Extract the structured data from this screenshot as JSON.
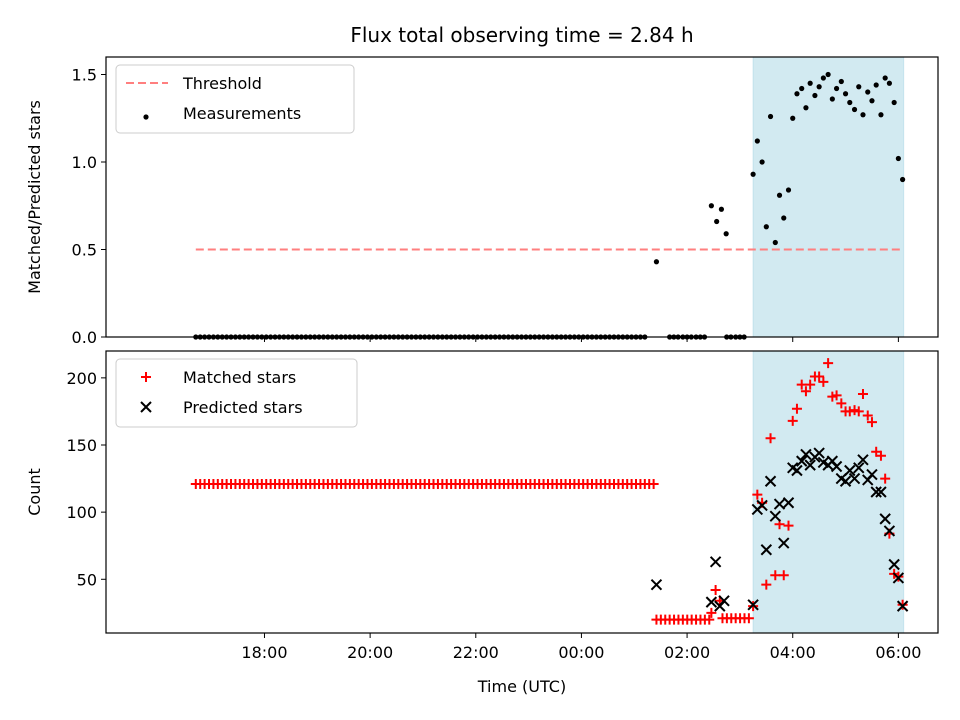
{
  "figure": {
    "title": "Flux total observing time = 2.84 h",
    "xlabel": "Time (UTC)"
  },
  "chart_data": [
    {
      "type": "scatter",
      "ylabel": "Matched/Predicted stars",
      "ylim": [
        0,
        1.6
      ],
      "yticks": [
        0.0,
        0.5,
        1.0,
        1.5
      ],
      "ytick_labels": [
        "0.0",
        "0.5",
        "1.0",
        "1.5"
      ],
      "xlim": [
        15.0,
        30.75
      ],
      "legend": {
        "placement": "top-left",
        "entries": [
          {
            "label": "Threshold",
            "style": "dashed-line",
            "color": "#ff7f7f"
          },
          {
            "label": "Measurements",
            "style": "dot",
            "color": "#000000"
          }
        ]
      },
      "threshold": {
        "name": "Threshold",
        "y": 0.5,
        "x_range": [
          16.7,
          30.1
        ],
        "color": "#ff7f7f"
      },
      "shaded_region": {
        "x_range": [
          27.25,
          30.1
        ],
        "color": "#add8e6"
      },
      "series": [
        {
          "name": "Measurements",
          "color": "#000000",
          "zero_run": {
            "x_start": 16.7,
            "x_end": 25.25,
            "step": 0.083333,
            "y": 0
          },
          "points": [
            [
              25.67,
              0.0
            ],
            [
              25.75,
              0.0
            ],
            [
              25.83,
              0.0
            ],
            [
              25.92,
              0.0
            ],
            [
              26.0,
              0.0
            ],
            [
              26.08,
              0.0
            ],
            [
              26.17,
              0.0
            ],
            [
              26.25,
              0.0
            ],
            [
              26.33,
              0.0
            ],
            [
              26.75,
              0.0
            ],
            [
              26.83,
              0.0
            ],
            [
              26.92,
              0.0
            ],
            [
              27.0,
              0.0
            ],
            [
              27.08,
              0.0
            ],
            [
              25.42,
              0.43
            ],
            [
              26.46,
              0.75
            ],
            [
              26.56,
              0.66
            ],
            [
              26.65,
              0.73
            ],
            [
              26.74,
              0.59
            ],
            [
              27.25,
              0.93
            ],
            [
              27.33,
              1.12
            ],
            [
              27.42,
              1.0
            ],
            [
              27.5,
              0.63
            ],
            [
              27.58,
              1.26
            ],
            [
              27.67,
              0.54
            ],
            [
              27.75,
              0.81
            ],
            [
              27.83,
              0.68
            ],
            [
              27.92,
              0.84
            ],
            [
              28.0,
              1.25
            ],
            [
              28.08,
              1.39
            ],
            [
              28.17,
              1.42
            ],
            [
              28.25,
              1.31
            ],
            [
              28.33,
              1.45
            ],
            [
              28.42,
              1.38
            ],
            [
              28.5,
              1.43
            ],
            [
              28.58,
              1.48
            ],
            [
              28.67,
              1.5
            ],
            [
              28.75,
              1.36
            ],
            [
              28.83,
              1.42
            ],
            [
              28.92,
              1.46
            ],
            [
              29.0,
              1.39
            ],
            [
              29.08,
              1.34
            ],
            [
              29.17,
              1.3
            ],
            [
              29.25,
              1.43
            ],
            [
              29.33,
              1.27
            ],
            [
              29.42,
              1.4
            ],
            [
              29.5,
              1.35
            ],
            [
              29.58,
              1.44
            ],
            [
              29.67,
              1.27
            ],
            [
              29.75,
              1.48
            ],
            [
              29.83,
              1.45
            ],
            [
              29.92,
              1.34
            ],
            [
              30.0,
              1.02
            ],
            [
              30.08,
              0.9
            ]
          ]
        }
      ]
    },
    {
      "type": "scatter",
      "ylabel": "Count",
      "ylim": [
        10,
        220
      ],
      "yticks": [
        50,
        100,
        150,
        200
      ],
      "ytick_labels": [
        "50",
        "100",
        "150",
        "200"
      ],
      "xlim": [
        15.0,
        30.75
      ],
      "xticks": [
        18,
        20,
        22,
        24,
        26,
        28,
        30
      ],
      "xtick_labels": [
        "18:00",
        "20:00",
        "22:00",
        "00:00",
        "02:00",
        "04:00",
        "06:00"
      ],
      "legend": {
        "placement": "top-left",
        "entries": [
          {
            "label": "Matched stars",
            "style": "plus",
            "color": "#ff0000"
          },
          {
            "label": "Predicted stars",
            "style": "x",
            "color": "#000000"
          }
        ]
      },
      "shaded_region": {
        "x_range": [
          27.25,
          30.1
        ],
        "color": "#add8e6"
      },
      "series": [
        {
          "name": "Matched stars",
          "color": "#ff0000",
          "marker": "plus",
          "constant_runs": [
            {
              "x_start": 16.7,
              "x_end": 25.4,
              "step": 0.083333,
              "y": 121
            },
            {
              "x_start": 25.42,
              "x_end": 26.42,
              "step": 0.083333,
              "y": 20
            },
            {
              "x_start": 26.67,
              "x_end": 27.17,
              "step": 0.083333,
              "y": 21
            }
          ],
          "points": [
            [
              26.46,
              25
            ],
            [
              26.54,
              42
            ],
            [
              26.62,
              34
            ],
            [
              27.25,
              30
            ],
            [
              27.33,
              113
            ],
            [
              27.42,
              107
            ],
            [
              27.5,
              46
            ],
            [
              27.58,
              155
            ],
            [
              27.67,
              53
            ],
            [
              27.75,
              91
            ],
            [
              27.83,
              53
            ],
            [
              27.92,
              90
            ],
            [
              28.0,
              168
            ],
            [
              28.08,
              177
            ],
            [
              28.17,
              195
            ],
            [
              28.25,
              190
            ],
            [
              28.33,
              195
            ],
            [
              28.42,
              201
            ],
            [
              28.5,
              201
            ],
            [
              28.58,
              197
            ],
            [
              28.67,
              211
            ],
            [
              28.75,
              186
            ],
            [
              28.83,
              187
            ],
            [
              28.92,
              181
            ],
            [
              29.0,
              175
            ],
            [
              29.08,
              175
            ],
            [
              29.17,
              176
            ],
            [
              29.25,
              175
            ],
            [
              29.33,
              188
            ],
            [
              29.42,
              172
            ],
            [
              29.5,
              167
            ],
            [
              29.58,
              145
            ],
            [
              29.67,
              142
            ],
            [
              29.75,
              125
            ],
            [
              29.83,
              84
            ],
            [
              29.92,
              54
            ],
            [
              30.0,
              52
            ],
            [
              30.08,
              31
            ]
          ]
        },
        {
          "name": "Predicted stars",
          "color": "#000000",
          "marker": "x",
          "points": [
            [
              25.42,
              46
            ],
            [
              26.46,
              33
            ],
            [
              26.54,
              63
            ],
            [
              26.62,
              30
            ],
            [
              26.7,
              34
            ],
            [
              27.25,
              31
            ],
            [
              27.33,
              102
            ],
            [
              27.42,
              105
            ],
            [
              27.5,
              72
            ],
            [
              27.58,
              123
            ],
            [
              27.67,
              97
            ],
            [
              27.75,
              106
            ],
            [
              27.83,
              77
            ],
            [
              27.92,
              107
            ],
            [
              28.0,
              133
            ],
            [
              28.08,
              131
            ],
            [
              28.17,
              138
            ],
            [
              28.25,
              143
            ],
            [
              28.33,
              135
            ],
            [
              28.42,
              141
            ],
            [
              28.5,
              144
            ],
            [
              28.58,
              137
            ],
            [
              28.67,
              135
            ],
            [
              28.75,
              138
            ],
            [
              28.83,
              134
            ],
            [
              28.92,
              125
            ],
            [
              29.0,
              123
            ],
            [
              29.08,
              131
            ],
            [
              29.17,
              125
            ],
            [
              29.25,
              133
            ],
            [
              29.33,
              139
            ],
            [
              29.42,
              124
            ],
            [
              29.5,
              128
            ],
            [
              29.58,
              115
            ],
            [
              29.67,
              115
            ],
            [
              29.75,
              95
            ],
            [
              29.83,
              86
            ],
            [
              29.92,
              61
            ],
            [
              30.0,
              51
            ],
            [
              30.08,
              30
            ]
          ]
        }
      ]
    }
  ]
}
